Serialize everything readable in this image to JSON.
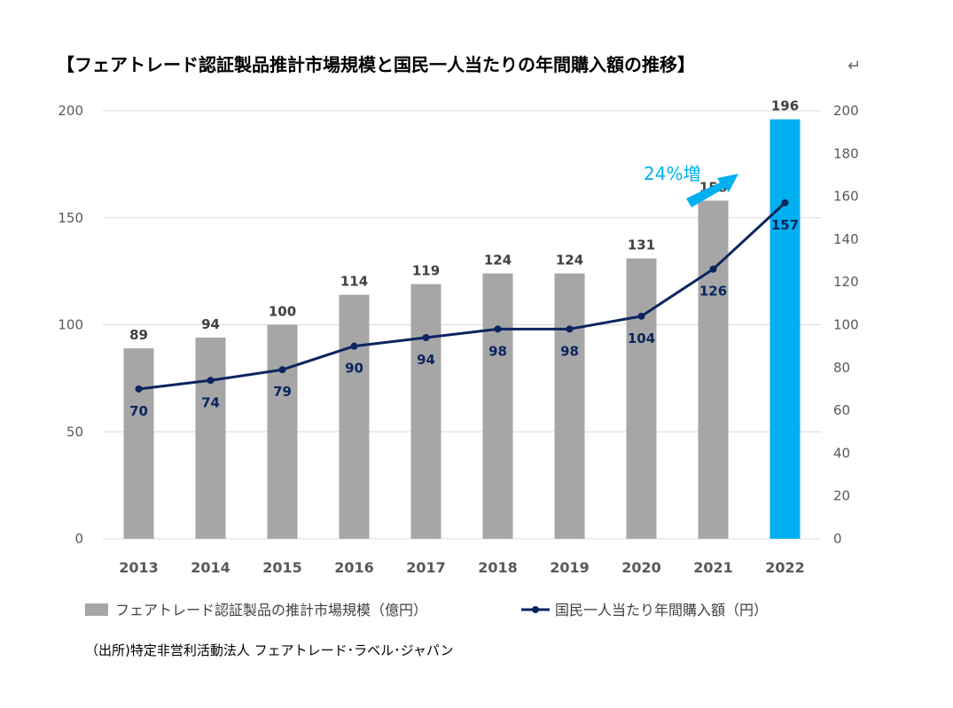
{
  "title": "【フェアトレード認証製品推計市場規模と国民一人当たりの年間購入額の推移】",
  "return_mark": "↵",
  "source": "（出所)特定非営利活動法人 フェアトレード･ラベル･ジャパン",
  "annotation": "24%増",
  "colors": {
    "bar": "#a6a6a6",
    "highlight_bar": "#00b0f0",
    "line": "#0b2560",
    "arrow": "#00b0f0",
    "grid": "#d9d9d9"
  },
  "chart_data": {
    "type": "bar+line",
    "categories": [
      "2013",
      "2014",
      "2015",
      "2016",
      "2017",
      "2018",
      "2019",
      "2020",
      "2021",
      "2022"
    ],
    "series": [
      {
        "name": "フェアトレード認証製品の推計市場規模（億円）",
        "type": "bar",
        "axis": "left",
        "values": [
          89,
          94,
          100,
          114,
          119,
          124,
          124,
          131,
          158,
          196
        ],
        "highlight_index": 9
      },
      {
        "name": "国民一人当たり年間購入額（円）",
        "type": "line",
        "axis": "right",
        "values": [
          70,
          74,
          79,
          90,
          94,
          98,
          98,
          104,
          126,
          157
        ]
      }
    ],
    "left_axis": {
      "ylim": [
        0,
        200
      ],
      "ticks": [
        0,
        50,
        100,
        150,
        200
      ]
    },
    "right_axis": {
      "ylim": [
        0,
        200
      ],
      "ticks": [
        0,
        20,
        40,
        60,
        80,
        100,
        120,
        140,
        160,
        180,
        200
      ]
    },
    "grid": true,
    "legend_position": "bottom"
  }
}
